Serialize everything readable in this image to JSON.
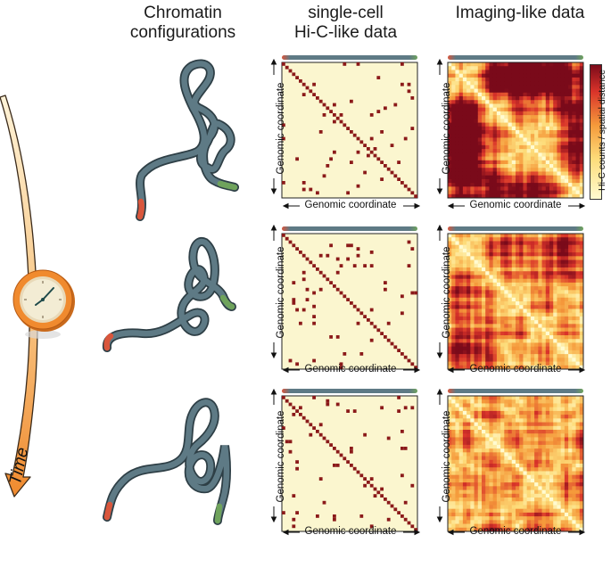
{
  "headers": {
    "chromatin_line1": "Chromatin",
    "chromatin_line2": "configurations",
    "hic_line1": "single-cell",
    "hic_line2": "Hi-C-like data",
    "imaging": "Imaging-like data"
  },
  "axis_label": "Genomic coordinate",
  "colorbar_label": "Hi-C counts / spatial distance",
  "time_label": "Time",
  "colors": {
    "polymer": "#5e7a85",
    "polymer_dark": "#2e3f46",
    "end_red": "#d9563c",
    "end_green": "#6fa35c",
    "hic_bg": "#fbf6cf",
    "hic_dot": "#8b1a1a",
    "clock_orange": "#f08a2e",
    "clock_face": "#f3ecd4"
  },
  "rows": [
    {
      "name": "row1"
    },
    {
      "name": "row2"
    },
    {
      "name": "row3"
    }
  ]
}
